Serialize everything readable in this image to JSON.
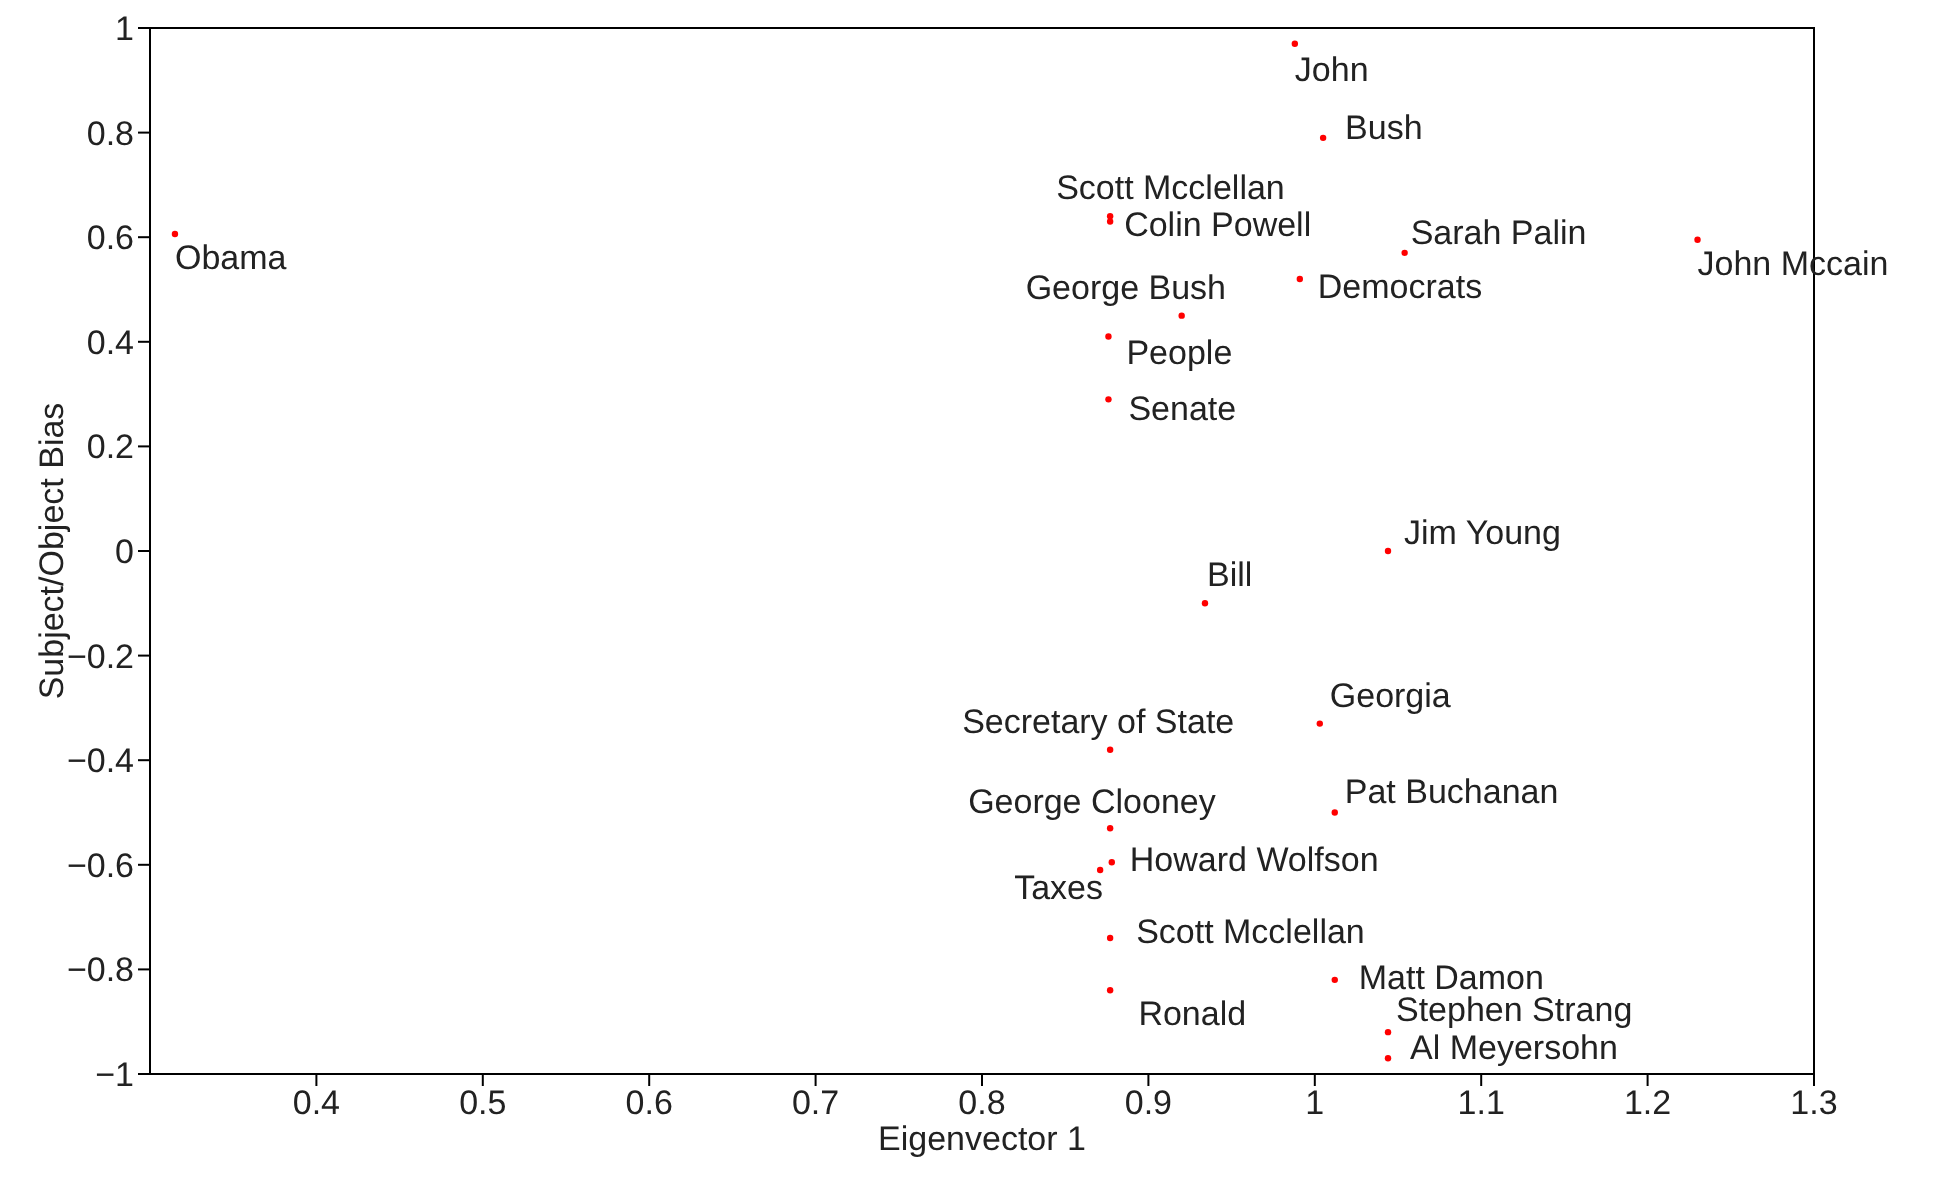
{
  "chart_data": {
    "type": "scatter",
    "xlabel": "Eigenvector 1",
    "ylabel": "Subject/Object Bias",
    "x": [
      0.988,
      1.005,
      0.877,
      0.877,
      1.054,
      1.23,
      0.315,
      0.991,
      0.92,
      0.876,
      0.876,
      1.044,
      0.934,
      1.003,
      0.877,
      1.012,
      0.877,
      0.878,
      0.871,
      0.877,
      1.012,
      0.877,
      1.044,
      1.044
    ],
    "series": [
      {
        "color": "#ff0000",
        "values": [
          0.97,
          0.79,
          0.64,
          0.63,
          0.57,
          0.595,
          0.606,
          0.52,
          0.45,
          0.41,
          0.29,
          0.0,
          -0.1,
          -0.33,
          -0.38,
          -0.5,
          -0.53,
          -0.595,
          -0.61,
          -0.74,
          -0.82,
          -0.84,
          -0.92,
          -0.97
        ]
      }
    ],
    "marker": "circle",
    "grid": false,
    "legend": false,
    "xlim": [
      0.3,
      1.3
    ],
    "xticks": [
      0.4,
      0.5,
      0.6,
      0.7,
      0.8,
      0.9,
      1,
      1.1,
      1.2,
      1.3
    ],
    "ylim": [
      -1,
      1
    ],
    "yticks": [
      -1,
      -0.8,
      -0.6,
      -0.4,
      -0.2,
      0,
      0.2,
      0.4,
      0.6,
      0.8,
      1
    ],
    "annotations": [
      {
        "text": "John",
        "x": 0.988,
        "y": 0.97
      },
      {
        "text": "Bush",
        "x": 1.005,
        "y": 0.79
      },
      {
        "text": "Scott Mcclellan",
        "x": 0.877,
        "y": 0.64
      },
      {
        "text": "Colin Powell",
        "x": 0.877,
        "y": 0.63
      },
      {
        "text": "Sarah Palin",
        "x": 1.054,
        "y": 0.57
      },
      {
        "text": "John Mccain",
        "x": 1.23,
        "y": 0.595
      },
      {
        "text": "Obama",
        "x": 0.315,
        "y": 0.606
      },
      {
        "text": "Democrats",
        "x": 0.991,
        "y": 0.52
      },
      {
        "text": "George Bush",
        "x": 0.92,
        "y": 0.45
      },
      {
        "text": "People",
        "x": 0.876,
        "y": 0.41
      },
      {
        "text": "Senate",
        "x": 0.876,
        "y": 0.29
      },
      {
        "text": "Jim Young",
        "x": 1.044,
        "y": 0.0
      },
      {
        "text": "Bill",
        "x": 0.934,
        "y": -0.1
      },
      {
        "text": "Georgia",
        "x": 1.003,
        "y": -0.33
      },
      {
        "text": "Secretary of State",
        "x": 0.877,
        "y": -0.38
      },
      {
        "text": "Pat Buchanan",
        "x": 1.012,
        "y": -0.5
      },
      {
        "text": "George Clooney",
        "x": 0.877,
        "y": -0.53
      },
      {
        "text": "Howard Wolfson",
        "x": 0.878,
        "y": -0.595
      },
      {
        "text": "Taxes",
        "x": 0.871,
        "y": -0.61
      },
      {
        "text": "Scott Mcclellan",
        "x": 0.877,
        "y": -0.74
      },
      {
        "text": "Matt Damon",
        "x": 1.012,
        "y": -0.82
      },
      {
        "text": "Ronald",
        "x": 0.877,
        "y": -0.84
      },
      {
        "text": "Stephen Strang",
        "x": 1.044,
        "y": -0.92
      },
      {
        "text": "Al Meyersohn",
        "x": 1.044,
        "y": -0.97
      }
    ]
  }
}
